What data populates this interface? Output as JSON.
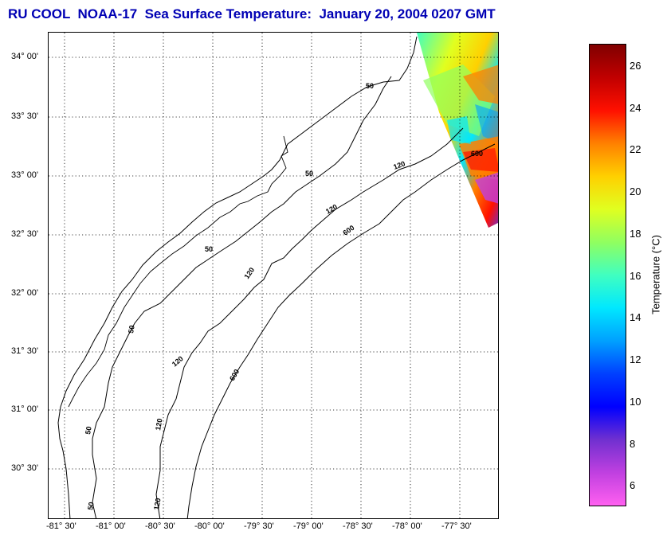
{
  "title": "RU COOL  NOAA-17  Sea Surface Temperature:  January 20, 2004 0207 GMT",
  "map": {
    "lat_labels": [
      "34° 00'",
      "33° 30'",
      "33° 00'",
      "32° 30'",
      "32° 00'",
      "31° 30'",
      "31° 00'",
      "30° 30'"
    ],
    "lon_labels": [
      "-81° 30'",
      "-81° 00'",
      "-80° 30'",
      "-80° 00'",
      "-79° 30'",
      "-79° 00'",
      "-78° 30'",
      "-78° 00'",
      "-77° 30'"
    ],
    "contour_labels": [
      "50",
      "50",
      "50",
      "50",
      "50",
      "50",
      "120",
      "120",
      "120",
      "120",
      "120",
      "120",
      "600",
      "600",
      "600"
    ],
    "grid": "dotted"
  },
  "colorbar": {
    "title": "Temperature (°C)",
    "ticks": [
      "26",
      "24",
      "22",
      "20",
      "18",
      "16",
      "14",
      "12",
      "10",
      "8",
      "6"
    ],
    "range": [
      5,
      27
    ],
    "colors": [
      "#ff60f0",
      "#c040e0",
      "#7030d0",
      "#0000ff",
      "#0040ff",
      "#00a0ff",
      "#00e8ff",
      "#40ffc0",
      "#90ff60",
      "#e0ff20",
      "#ffd000",
      "#ff8000",
      "#ff1000",
      "#c00000",
      "#800000"
    ]
  }
}
